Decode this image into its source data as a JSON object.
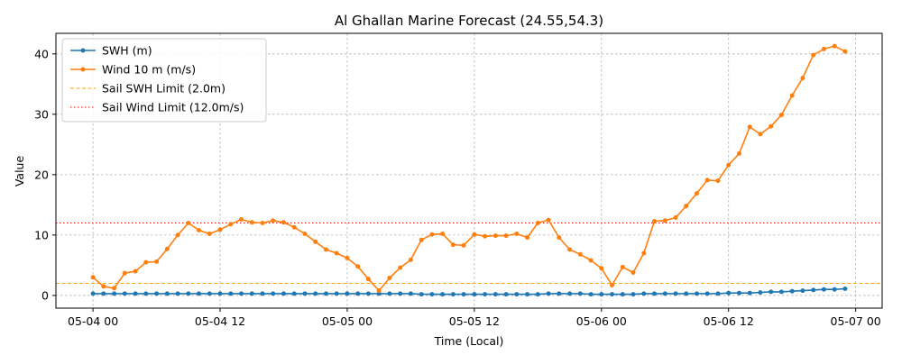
{
  "chart_data": {
    "type": "line",
    "title": "Al Ghallan Marine Forecast (24.55,54.3)",
    "xlabel": "Time (Local)",
    "ylabel": "Value",
    "x_unit": "hours since 05-04 00",
    "xlim": [
      -3.5,
      74.5
    ],
    "ylim": [
      -2.1,
      43.4
    ],
    "x_ticks": [
      {
        "x": 0,
        "label": "05-04 00"
      },
      {
        "x": 12,
        "label": "05-04 12"
      },
      {
        "x": 24,
        "label": "05-05 00"
      },
      {
        "x": 36,
        "label": "05-05 12"
      },
      {
        "x": 48,
        "label": "05-06 00"
      },
      {
        "x": 60,
        "label": "05-06 12"
      },
      {
        "x": 72,
        "label": "05-07 00"
      }
    ],
    "y_ticks": [
      0,
      10,
      20,
      30,
      40
    ],
    "grid": true,
    "legend_position": "upper left",
    "series": [
      {
        "name": "SWH (m)",
        "color": "#1f77b4",
        "x": [
          0,
          1,
          2,
          3,
          4,
          5,
          6,
          7,
          8,
          9,
          10,
          11,
          12,
          13,
          14,
          15,
          16,
          17,
          18,
          19,
          20,
          21,
          22,
          23,
          24,
          25,
          26,
          27,
          28,
          29,
          30,
          31,
          32,
          33,
          34,
          35,
          36,
          37,
          38,
          39,
          40,
          41,
          42,
          43,
          44,
          45,
          46,
          47,
          48,
          49,
          50,
          51,
          52,
          53,
          54,
          55,
          56,
          57,
          58,
          59,
          60,
          61,
          62,
          63,
          64,
          65,
          66,
          67,
          68,
          69,
          70,
          71
        ],
        "values": [
          0.3,
          0.3,
          0.3,
          0.3,
          0.3,
          0.3,
          0.3,
          0.3,
          0.3,
          0.3,
          0.3,
          0.3,
          0.3,
          0.3,
          0.3,
          0.3,
          0.3,
          0.3,
          0.3,
          0.3,
          0.3,
          0.3,
          0.3,
          0.3,
          0.3,
          0.3,
          0.3,
          0.3,
          0.3,
          0.3,
          0.3,
          0.2,
          0.2,
          0.2,
          0.2,
          0.2,
          0.2,
          0.2,
          0.2,
          0.2,
          0.2,
          0.2,
          0.2,
          0.3,
          0.3,
          0.3,
          0.3,
          0.2,
          0.2,
          0.2,
          0.2,
          0.2,
          0.3,
          0.3,
          0.3,
          0.3,
          0.3,
          0.3,
          0.3,
          0.3,
          0.4,
          0.4,
          0.4,
          0.5,
          0.6,
          0.6,
          0.7,
          0.8,
          0.9,
          1.0,
          1.0,
          1.1
        ]
      },
      {
        "name": "Wind 10 m (m/s)",
        "color": "#ff7f0e",
        "x": [
          0,
          1,
          2,
          3,
          4,
          5,
          6,
          7,
          8,
          9,
          10,
          11,
          12,
          13,
          14,
          15,
          16,
          17,
          18,
          19,
          20,
          21,
          22,
          23,
          24,
          25,
          26,
          27,
          28,
          29,
          30,
          31,
          32,
          33,
          34,
          35,
          36,
          37,
          38,
          39,
          40,
          41,
          42,
          43,
          44,
          45,
          46,
          47,
          48,
          49,
          50,
          51,
          52,
          53,
          54,
          55,
          56,
          57,
          58,
          59,
          60,
          61,
          62,
          63,
          64,
          65,
          66,
          67,
          68,
          69,
          70,
          71
        ],
        "values": [
          3.0,
          1.5,
          1.2,
          3.7,
          4.0,
          5.5,
          5.6,
          7.7,
          10.0,
          12.0,
          10.8,
          10.2,
          10.9,
          11.8,
          12.6,
          12.1,
          12.0,
          12.4,
          12.1,
          11.3,
          10.2,
          8.9,
          7.6,
          7.0,
          6.2,
          4.8,
          2.7,
          0.8,
          2.9,
          4.6,
          5.9,
          9.2,
          10.1,
          10.2,
          8.4,
          8.3,
          10.1,
          9.8,
          9.9,
          9.9,
          10.2,
          9.6,
          12.0,
          12.5,
          9.6,
          7.6,
          6.8,
          5.8,
          4.5,
          1.7,
          4.7,
          3.8,
          7.0,
          12.3,
          12.4,
          12.9,
          14.8,
          16.9,
          19.1,
          19.0,
          21.6,
          23.5,
          27.9,
          26.7,
          28.0,
          29.9,
          33.1,
          36.0,
          39.8,
          40.8,
          41.3,
          40.4
        ]
      }
    ],
    "thresholds": [
      {
        "name": "Sail SWH Limit (2.0m)",
        "value": 2.0,
        "color": "#ffa500",
        "style": "dashed"
      },
      {
        "name": "Sail Wind Limit (12.0m/s)",
        "value": 12.0,
        "color": "#ff0000",
        "style": "dotted"
      }
    ]
  }
}
